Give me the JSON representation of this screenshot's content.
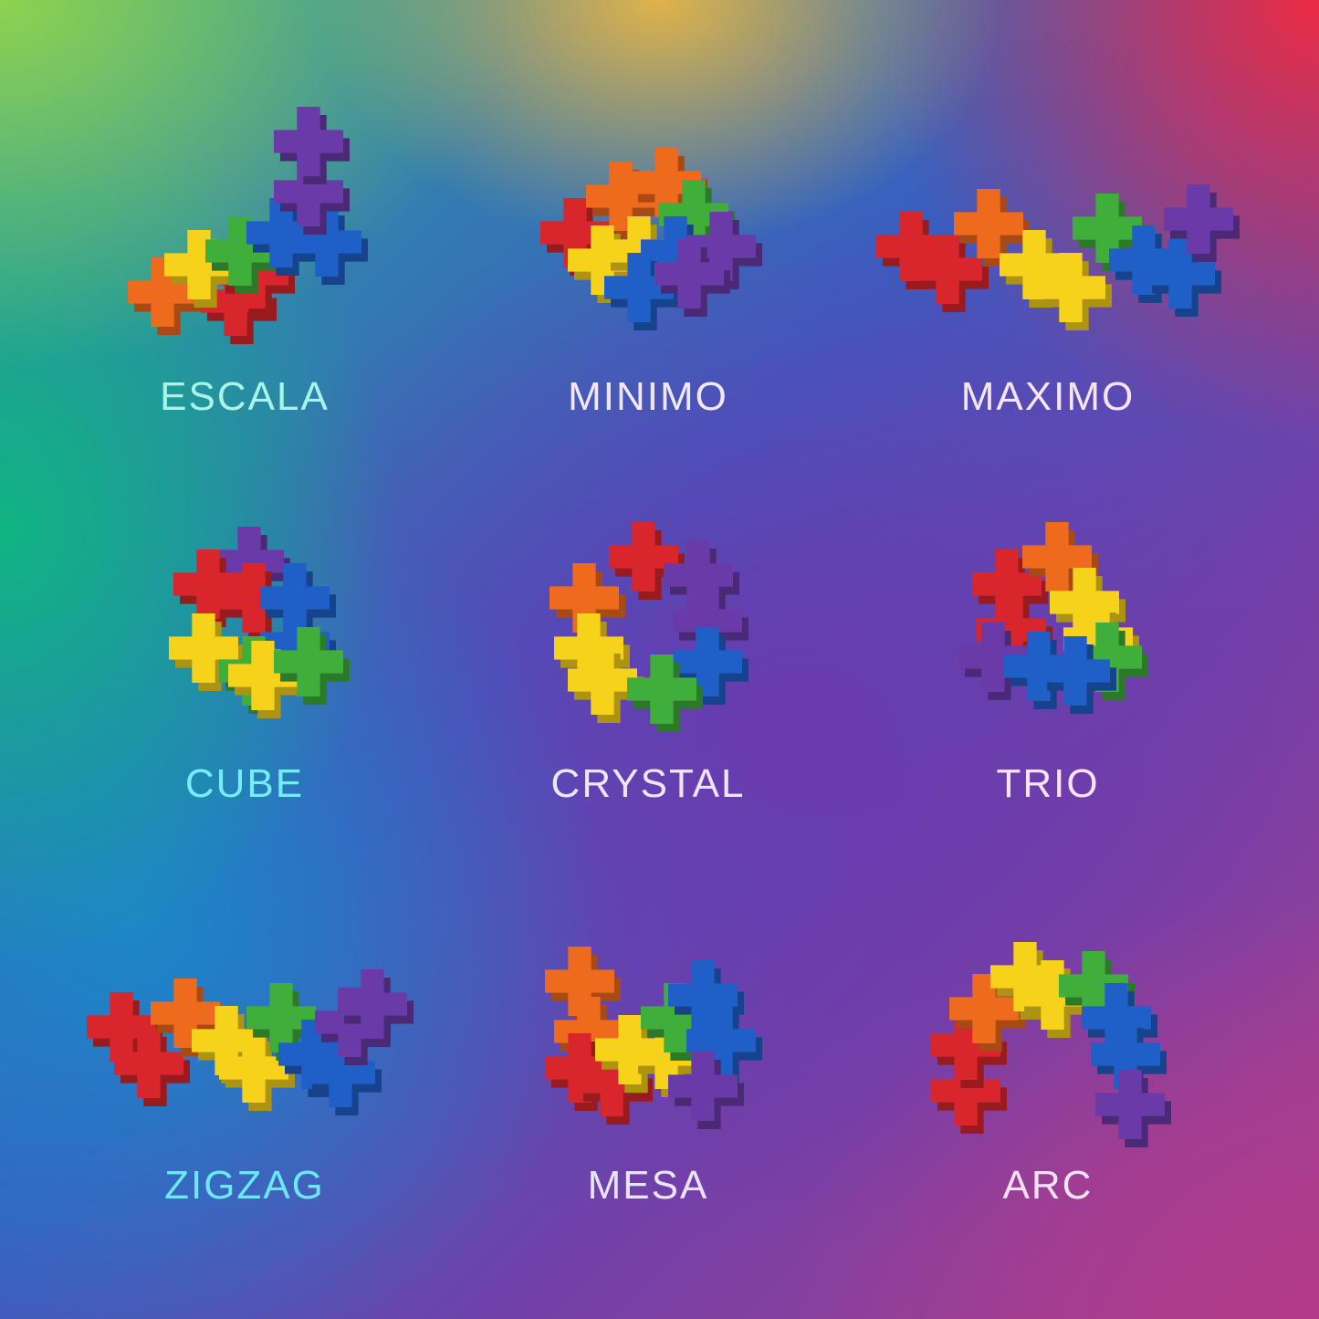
{
  "palette": {
    "red": "#d9262c",
    "orange": "#ee6a1c",
    "yellow": "#f6d21a",
    "green": "#3fae3a",
    "blue": "#1f5fc8",
    "purple": "#6a3aa8"
  },
  "shapes": [
    {
      "name": "ESCALA",
      "label_color": "#a8f5e8"
    },
    {
      "name": "MINIMO",
      "label_color": "#f1e8ff"
    },
    {
      "name": "MAXIMO",
      "label_color": "#f6e4f4"
    },
    {
      "name": "CUBE",
      "label_color": "#72eef6"
    },
    {
      "name": "CRYSTAL",
      "label_color": "#eee6ff"
    },
    {
      "name": "TRIO",
      "label_color": "#f6e4f8"
    },
    {
      "name": "ZIGZAG",
      "label_color": "#6ae8f4"
    },
    {
      "name": "MESA",
      "label_color": "#e8e4ff"
    },
    {
      "name": "ARC",
      "label_color": "#f4e2f2"
    }
  ]
}
